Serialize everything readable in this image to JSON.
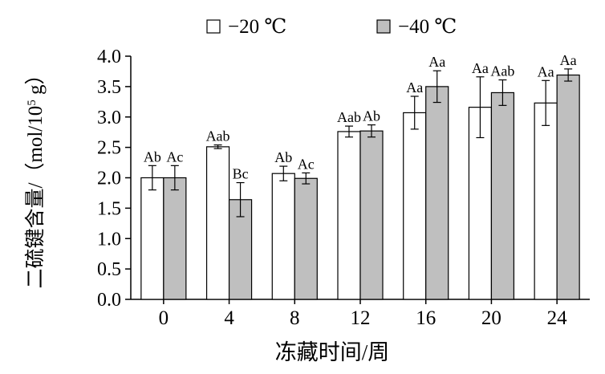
{
  "chart_data": {
    "type": "bar",
    "title": "",
    "xlabel": "冻藏时间/周",
    "ylabel": "二硫键含量/（mol/10⁵ g）",
    "ylabel_parts": {
      "pre": "二硫键含量/（mol/10",
      "sup": "5",
      "post": " g）"
    },
    "categories": [
      "0",
      "4",
      "8",
      "12",
      "16",
      "20",
      "24"
    ],
    "ylim": [
      0.0,
      4.0
    ],
    "yticks": [
      "0.0",
      "0.5",
      "1.0",
      "1.5",
      "2.0",
      "2.5",
      "3.0",
      "3.5",
      "4.0"
    ],
    "grid": false,
    "legend_position": "top",
    "series": [
      {
        "name": "−20 ℃",
        "fill": "#ffffff",
        "values": [
          2.0,
          2.51,
          2.07,
          2.76,
          3.07,
          3.16,
          3.23
        ],
        "errors": [
          0.2,
          0.03,
          0.12,
          0.09,
          0.27,
          0.5,
          0.37
        ],
        "labels": [
          "Ab",
          "Aab",
          "Ab",
          "Aab",
          "Aa",
          "Aa",
          "Aa"
        ]
      },
      {
        "name": "−40 ℃",
        "fill": "#bfbfbf",
        "values": [
          2.0,
          1.64,
          1.99,
          2.77,
          3.5,
          3.4,
          3.69
        ],
        "errors": [
          0.2,
          0.28,
          0.09,
          0.1,
          0.26,
          0.21,
          0.1
        ],
        "labels": [
          "Ac",
          "Bc",
          "Ac",
          "Ab",
          "Aa",
          "Aab",
          "Aa"
        ]
      }
    ]
  }
}
